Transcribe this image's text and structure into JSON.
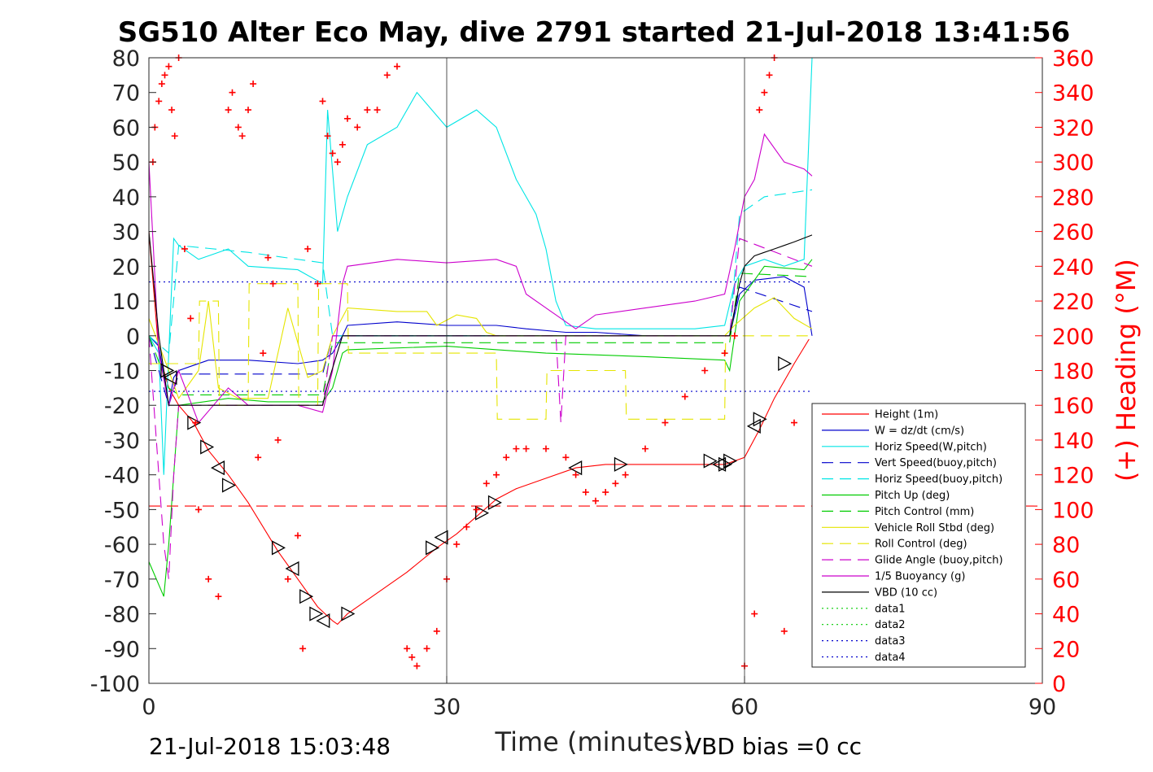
{
  "chart_data": {
    "type": "line",
    "title": "SG510 Alter Eco May, dive 2791 started 21-Jul-2018 13:41:56",
    "xlabel": "Time (minutes)",
    "ylabel_right": "(+) Heading (°M)",
    "xlim": [
      0,
      90
    ],
    "ylim": [
      -100,
      80
    ],
    "ylim_right": [
      0,
      360
    ],
    "x_ticks": [
      "0",
      "30",
      "60",
      "90"
    ],
    "y_ticks": [
      "80",
      "70",
      "60",
      "50",
      "40",
      "30",
      "20",
      "10",
      "0",
      "-10",
      "-20",
      "-30",
      "-40",
      "-50",
      "-60",
      "-70",
      "-80",
      "-90",
      "-100"
    ],
    "y_right_ticks": [
      "360",
      "340",
      "320",
      "300",
      "280",
      "260",
      "240",
      "220",
      "200",
      "180",
      "160",
      "140",
      "120",
      "100",
      "80",
      "60",
      "40",
      "20",
      "0"
    ],
    "grid": "vertical lines at x=30 and x=60",
    "legend_position": "right, lower",
    "footer_left": "21-Jul-2018 15:03:48",
    "footer_right": "VBD bias =0 cc",
    "legend": [
      {
        "label": "Height (1m)",
        "color": "#ff0000",
        "style": "solid"
      },
      {
        "label": "W = dz/dt (cm/s)",
        "color": "#0000cc",
        "style": "solid"
      },
      {
        "label": "Horiz Speed(W,pitch)",
        "color": "#00e5e5",
        "style": "solid"
      },
      {
        "label": "Vert Speed(buoy,pitch)",
        "color": "#0000cc",
        "style": "dashed"
      },
      {
        "label": "Horiz Speed(buoy,pitch)",
        "color": "#00e5e5",
        "style": "dashed"
      },
      {
        "label": "Pitch Up (deg)",
        "color": "#00cc00",
        "style": "solid"
      },
      {
        "label": "Pitch Control (mm)",
        "color": "#00cc00",
        "style": "dashed"
      },
      {
        "label": "Vehicle Roll Stbd (deg)",
        "color": "#e5e500",
        "style": "solid"
      },
      {
        "label": "Roll Control (deg)",
        "color": "#e5e500",
        "style": "dashed"
      },
      {
        "label": "Glide Angle (buoy,pitch)",
        "color": "#cc00cc",
        "style": "dashed"
      },
      {
        "label": "1/5 Buoyancy (g)",
        "color": "#cc00cc",
        "style": "solid"
      },
      {
        "label": "VBD (10 cc)",
        "color": "#000000",
        "style": "solid"
      },
      {
        "label": "data1",
        "color": "#00cc00",
        "style": "dotted"
      },
      {
        "label": "data2",
        "color": "#00cc00",
        "style": "dotted"
      },
      {
        "label": "data3",
        "color": "#0000cc",
        "style": "dotted"
      },
      {
        "label": "data4",
        "color": "#0000cc",
        "style": "dotted"
      }
    ],
    "series": [
      {
        "name": "Height (1m)",
        "color": "#ff0000",
        "style": "solid",
        "x": [
          0,
          1,
          2,
          3,
          4.5,
          6,
          8,
          10,
          13,
          15,
          17,
          18.5,
          19,
          20,
          23,
          26,
          29,
          31,
          33,
          35,
          37,
          40,
          43,
          46,
          50,
          55,
          58,
          59,
          60,
          61.5,
          63,
          65,
          66.5
        ],
        "y": [
          30,
          -5,
          -15,
          -20,
          -25,
          -33,
          -40,
          -48,
          -62,
          -70,
          -78,
          -82,
          -83,
          -80,
          -74,
          -68,
          -61,
          -57,
          -52,
          -47,
          -44,
          -41,
          -38,
          -37,
          -37,
          -37,
          -37,
          -36,
          -35,
          -27,
          -18,
          -8,
          -1
        ]
      },
      {
        "name": "W = dz/dt (cm/s)",
        "color": "#0000cc",
        "style": "solid",
        "x": [
          0,
          1,
          2,
          2.5,
          3,
          4,
          6,
          10,
          15,
          17.5,
          18.5,
          19.5,
          20,
          25,
          30,
          35,
          38,
          42,
          45,
          50,
          55,
          58.5,
          59.5,
          61,
          64,
          66,
          66.8
        ],
        "y": [
          0,
          -3,
          -20,
          -12,
          -10,
          -9,
          -7,
          -7,
          -8,
          -7,
          -5,
          0,
          3,
          4,
          3,
          3,
          2,
          1,
          1,
          0,
          0,
          0,
          12,
          16,
          17,
          14,
          0
        ]
      },
      {
        "name": "Horiz Speed(W,pitch)",
        "color": "#00e5e5",
        "style": "solid",
        "x": [
          0,
          1,
          1.5,
          2,
          2.5,
          3,
          5,
          8,
          10,
          15,
          17.5,
          18,
          19,
          20,
          22,
          25,
          27,
          30,
          33,
          35,
          37,
          39,
          40,
          41,
          42,
          45,
          50,
          55,
          58,
          59,
          60,
          62,
          64,
          66,
          66.8
        ],
        "y": [
          0,
          -5,
          -40,
          -5,
          28,
          26,
          22,
          25,
          20,
          19,
          15,
          65,
          30,
          40,
          55,
          60,
          70,
          60,
          65,
          60,
          45,
          35,
          25,
          10,
          3,
          2,
          2,
          2,
          3,
          15,
          20,
          22,
          20,
          22,
          80
        ]
      },
      {
        "name": "Vert Speed(buoy,pitch)",
        "color": "#0000cc",
        "style": "dashed",
        "x": [
          0,
          2,
          3,
          17.5,
          18.5,
          58.5,
          59.5,
          66.8
        ],
        "y": [
          0,
          -20,
          -11,
          -11,
          0,
          0,
          14,
          7
        ]
      },
      {
        "name": "Horiz Speed(buoy,pitch)",
        "color": "#00e5e5",
        "style": "dashed",
        "x": [
          0,
          2,
          3,
          10,
          17.5,
          18.5,
          58.5,
          59.5,
          62,
          66.8
        ],
        "y": [
          0,
          -5,
          26,
          24,
          21,
          0,
          0,
          35,
          40,
          42
        ]
      },
      {
        "name": "Pitch Up (deg)",
        "color": "#00cc00",
        "style": "solid",
        "x": [
          0,
          1.5,
          2,
          3,
          8,
          12,
          17.5,
          18.5,
          19.5,
          20,
          30,
          40,
          50,
          58,
          58.5,
          59.5,
          62,
          66,
          66.8
        ],
        "y": [
          -65,
          -75,
          -60,
          -20,
          -18,
          -19,
          -19,
          -15,
          -5,
          -4,
          -3,
          -5,
          -6,
          -7,
          -10,
          10,
          20,
          19,
          22
        ]
      },
      {
        "name": "Pitch Control (mm)",
        "color": "#00cc00",
        "style": "dashed",
        "x": [
          0,
          2,
          3,
          17.5,
          18.5,
          58.5,
          59.5,
          66.8
        ],
        "y": [
          0,
          -15,
          -17,
          -17,
          -2,
          -2,
          18,
          17
        ]
      },
      {
        "name": "Vehicle Roll Stbd (deg)",
        "color": "#e5e500",
        "style": "solid",
        "x": [
          0,
          2,
          3,
          5,
          6,
          7,
          9,
          12,
          14,
          16,
          17.5,
          18.5,
          20,
          25,
          28,
          29,
          31,
          33,
          34,
          35,
          45,
          50,
          55,
          58,
          59,
          61,
          63,
          65,
          66.8
        ],
        "y": [
          5,
          -10,
          -18,
          -10,
          10,
          -15,
          -18,
          -18,
          8,
          -12,
          -10,
          0,
          8,
          7,
          7,
          3,
          6,
          5,
          1,
          0,
          0,
          0,
          0,
          0,
          3,
          8,
          11,
          5,
          2
        ]
      },
      {
        "name": "Roll Control (deg)",
        "color": "#e5e500",
        "style": "dashed",
        "x": [
          0,
          5,
          5.1,
          7,
          7.1,
          10,
          10.1,
          15,
          15.1,
          17,
          17.1,
          20,
          20.1,
          35,
          35.1,
          40,
          40.1,
          48,
          48.1,
          58,
          58.1,
          66.8
        ],
        "y": [
          -8,
          -8,
          10,
          10,
          -20,
          -20,
          15,
          15,
          -20,
          -20,
          15,
          15,
          -5,
          -5,
          -24,
          -24,
          -10,
          -10,
          -24,
          -24,
          0,
          0
        ]
      },
      {
        "name": "Glide Angle (buoy,pitch)",
        "color": "#cc00cc",
        "style": "dashed",
        "x": [
          0,
          1.5,
          2,
          2.5,
          3,
          17.5,
          18.5,
          41,
          41.5,
          42,
          58.5,
          59.5,
          66.8
        ],
        "y": [
          0,
          -60,
          -70,
          -40,
          -20,
          -20,
          0,
          0,
          -25,
          0,
          0,
          28,
          20
        ]
      },
      {
        "name": "1/5 Buoyancy (g)",
        "color": "#cc00cc",
        "style": "solid",
        "x": [
          0,
          1,
          2,
          3,
          5,
          8,
          10,
          15,
          17.5,
          18.5,
          19.5,
          20,
          25,
          30,
          35,
          37,
          38,
          40,
          41,
          43,
          45,
          50,
          55,
          58,
          59,
          60,
          61,
          62,
          64,
          66,
          66.8
        ],
        "y": [
          50,
          -5,
          -20,
          -10,
          -25,
          -15,
          -20,
          -20,
          -22,
          -10,
          15,
          20,
          22,
          21,
          22,
          20,
          12,
          8,
          6,
          2,
          6,
          8,
          10,
          12,
          25,
          40,
          45,
          58,
          50,
          48,
          46
        ]
      },
      {
        "name": "VBD (10 cc)",
        "color": "#000000",
        "style": "solid",
        "x": [
          0,
          1,
          2,
          17.5,
          18,
          19.5,
          58.5,
          59.5,
          60,
          61,
          62,
          63,
          64,
          65,
          66.8
        ],
        "y": [
          30,
          0,
          -20,
          -20,
          -14,
          0,
          0,
          15,
          20,
          23,
          24,
          25,
          26,
          27,
          29
        ]
      },
      {
        "name": "data3",
        "color": "#0000cc",
        "style": "dotted",
        "x": [
          0,
          66.8
        ],
        "y": [
          15.5,
          15.5
        ]
      },
      {
        "name": "data4",
        "color": "#0000cc",
        "style": "dotted",
        "x": [
          0,
          66.8
        ],
        "y": [
          -16,
          -16
        ]
      },
      {
        "name": "Reference depth",
        "color": "#ff0000",
        "style": "dashed",
        "x": [
          0,
          90
        ],
        "y": [
          -49,
          -49
        ]
      }
    ],
    "heading_points": {
      "name": "Heading",
      "color": "#ff0000",
      "marker": "+",
      "axis": "right",
      "x": [
        0.4,
        0.6,
        1.0,
        1.3,
        1.6,
        2.0,
        2.3,
        2.6,
        3.0,
        3.6,
        4.2,
        4.7,
        5.0,
        6.0,
        7.0,
        8.0,
        8.4,
        9.0,
        9.4,
        10.0,
        10.5,
        11.0,
        11.5,
        12.0,
        12.5,
        13.0,
        14.0,
        15.0,
        15.5,
        16.0,
        17.0,
        17.5,
        18.0,
        18.5,
        19.0,
        19.5,
        20.0,
        21.0,
        22.0,
        23.0,
        24.0,
        25.0,
        26.0,
        26.5,
        27.0,
        28.0,
        29.0,
        30.0,
        31.0,
        32.0,
        33.0,
        34.0,
        35.0,
        36.0,
        37.0,
        38.0,
        40.0,
        42.0,
        43.0,
        44.0,
        45.0,
        46.0,
        47.0,
        48.0,
        50.0,
        52.0,
        54.0,
        56.0,
        58.0,
        59.0,
        60.0,
        61.0,
        61.5,
        62.0,
        62.5,
        63.0,
        64.0,
        65.0
      ],
      "y": [
        300,
        320,
        335,
        345,
        350,
        355,
        330,
        315,
        360,
        250,
        210,
        150,
        100,
        60,
        50,
        330,
        340,
        320,
        315,
        330,
        345,
        130,
        190,
        245,
        230,
        140,
        60,
        85,
        20,
        250,
        230,
        335,
        315,
        305,
        300,
        310,
        325,
        320,
        330,
        330,
        350,
        355,
        20,
        15,
        10,
        20,
        30,
        60,
        80,
        90,
        100,
        115,
        120,
        130,
        135,
        135,
        135,
        130,
        120,
        110,
        105,
        110,
        115,
        120,
        135,
        150,
        165,
        180,
        190,
        200,
        10,
        40,
        330,
        340,
        350,
        360,
        30,
        150
      ]
    },
    "glider_markers": {
      "name": "Glider position markers",
      "color": "#000000",
      "marker": "triangle",
      "x": [
        1.8,
        2.2,
        4.5,
        5.8,
        7.0,
        8.0,
        13.0,
        14.5,
        15.8,
        16.8,
        17.6,
        20.0,
        28.5,
        29.5,
        33.5,
        34.8,
        43.0,
        47.5,
        56.5,
        57.5,
        58.0,
        58.5,
        61.0,
        61.5,
        64.0
      ],
      "y": [
        -10,
        -12,
        -25,
        -32,
        -38,
        -43,
        -61,
        -67,
        -75,
        -80,
        -82,
        -80,
        -61,
        -58,
        -51,
        -48,
        -38,
        -37,
        -36,
        -37,
        -37,
        -36,
        -26,
        -24,
        -8
      ]
    }
  }
}
